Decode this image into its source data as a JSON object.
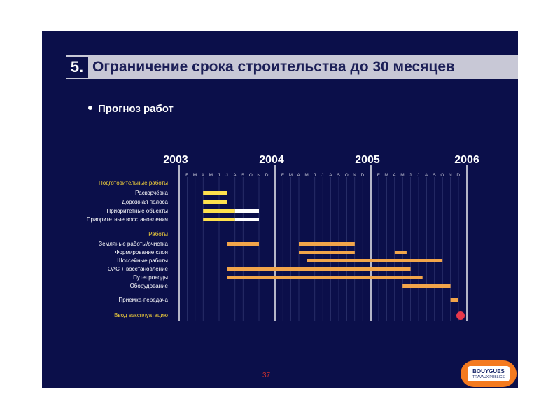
{
  "slide": {
    "number": "5.",
    "title": "Ограничение срока строительства до 30 месяцев",
    "subtitle": "Прогноз работ",
    "page_number": "37",
    "logo_line1": "BOUYGUES",
    "logo_line2": "TRAVAUX PUBLICS"
  },
  "colors": {
    "background": "#0b0f4a",
    "title_bar": "#c8c8d6",
    "bar_orange": "#f2a54a",
    "bar_yellow": "#ffe14d",
    "bar_white": "#ffffff",
    "section_label": "#f5d23a",
    "milestone": "#e8384b"
  },
  "chart_data": {
    "type": "gantt",
    "years": [
      "2003",
      "2004",
      "2005",
      "2006"
    ],
    "month_labels": [
      "F",
      "M",
      "A",
      "M",
      "J",
      "J",
      "A",
      "S",
      "O",
      "N",
      "D",
      "F",
      "M",
      "A",
      "M",
      "J",
      "J",
      "A",
      "S",
      "O",
      "N",
      "D",
      "F",
      "M",
      "A",
      "M",
      "J",
      "J",
      "A",
      "S",
      "O",
      "N",
      "D"
    ],
    "timeline_range_months": [
      0,
      36
    ],
    "rows": [
      {
        "label": "Подготовительные работы",
        "section": true,
        "bars": []
      },
      {
        "label": "Раскорчёвка",
        "bars": [
          {
            "start": 3,
            "end": 6,
            "color": "yellow"
          }
        ]
      },
      {
        "label": "Дорожная полоса",
        "bars": [
          {
            "start": 3,
            "end": 6,
            "color": "yellow"
          }
        ]
      },
      {
        "label": "Приоритетные объекты",
        "bars": [
          {
            "start": 3,
            "end": 7,
            "color": "yellow"
          },
          {
            "start": 7,
            "end": 10,
            "color": "white"
          }
        ]
      },
      {
        "label": "Приоритетные восстановления",
        "bars": [
          {
            "start": 3,
            "end": 7,
            "color": "yellow"
          },
          {
            "start": 7,
            "end": 10,
            "color": "white"
          }
        ]
      },
      {
        "label": "Работы",
        "section": true,
        "bars": []
      },
      {
        "label": "Земляные работы/очистка",
        "bars": [
          {
            "start": 6,
            "end": 10,
            "color": "orange"
          },
          {
            "start": 15,
            "end": 22,
            "color": "orange"
          }
        ]
      },
      {
        "label": "Формирование слоя",
        "bars": [
          {
            "start": 15,
            "end": 22,
            "color": "orange"
          },
          {
            "start": 27,
            "end": 28.5,
            "color": "orange"
          }
        ]
      },
      {
        "label": "Шоссейные работы",
        "bars": [
          {
            "start": 16,
            "end": 33,
            "color": "orange"
          }
        ]
      },
      {
        "label": "ОАС + восстановление",
        "bars": [
          {
            "start": 6,
            "end": 29,
            "color": "orange"
          }
        ]
      },
      {
        "label": "Путепроводы",
        "bars": [
          {
            "start": 6,
            "end": 30.5,
            "color": "orange"
          }
        ]
      },
      {
        "label": "Оборудование",
        "bars": [
          {
            "start": 28,
            "end": 34,
            "color": "orange"
          }
        ]
      },
      {
        "label": "Приемка-передача",
        "bars": [
          {
            "start": 34,
            "end": 35,
            "color": "orange"
          }
        ]
      },
      {
        "label": "Ввод вэксплуатацию",
        "section": true,
        "milestone": 35,
        "bars": []
      }
    ]
  }
}
